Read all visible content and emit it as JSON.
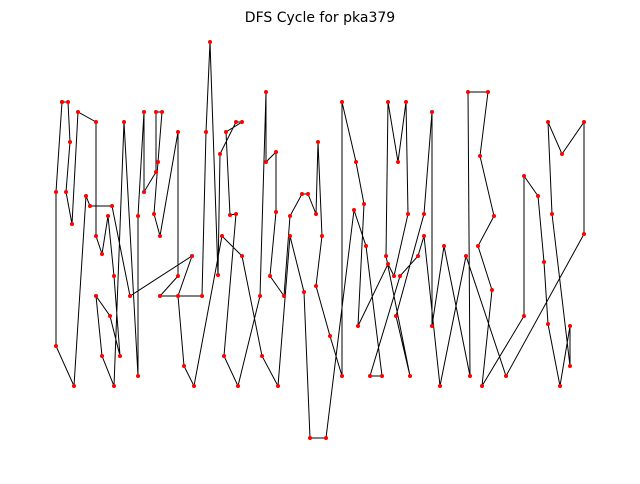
{
  "chart_data": {
    "type": "line",
    "title": "DFS Cycle for pka379",
    "line_color": "#000000",
    "marker_color": "#ff0000",
    "x": [
      62,
      68,
      70,
      66,
      72,
      78,
      96,
      96,
      102,
      108,
      114,
      120,
      110,
      96,
      102,
      114,
      124,
      138,
      138,
      144,
      144,
      156,
      156,
      162,
      158,
      154,
      160,
      178,
      178,
      160,
      202,
      206,
      210,
      218,
      220,
      236,
      242,
      226,
      230,
      236,
      224,
      238,
      260,
      266,
      266,
      276,
      276,
      270,
      284,
      290,
      302,
      308,
      316,
      318,
      322,
      316,
      330,
      342,
      342,
      356,
      364,
      358,
      388,
      394,
      408,
      406,
      398,
      388,
      386,
      410,
      396,
      424,
      432,
      432,
      444,
      470,
      468,
      488,
      480,
      494,
      478,
      492,
      482,
      524,
      524,
      538,
      544,
      548,
      560,
      570,
      570,
      552,
      548,
      562,
      584,
      584,
      506,
      466,
      440,
      424,
      418,
      400,
      370,
      382,
      366,
      354,
      326,
      310,
      304,
      290,
      278,
      262,
      242,
      222,
      194,
      184,
      178,
      192,
      130,
      112,
      90,
      86,
      74,
      56,
      56,
      62
    ],
    "y": [
      378,
      378,
      338,
      288,
      256,
      368,
      358,
      244,
      226,
      264,
      204,
      124,
      164,
      184,
      124,
      94,
      358,
      104,
      264,
      368,
      288,
      308,
      368,
      368,
      318,
      266,
      244,
      348,
      204,
      184,
      184,
      348,
      438,
      205,
      326,
      358,
      358,
      348,
      265,
      266,
      124,
      94,
      184,
      388,
      318,
      328,
      268,
      204,
      184,
      264,
      286,
      286,
      266,
      338,
      244,
      194,
      144,
      104,
      378,
      318,
      276,
      154,
      216,
      204,
      266,
      378,
      318,
      378,
      224,
      104,
      164,
      266,
      368,
      154,
      234,
      104,
      388,
      388,
      324,
      264,
      234,
      190,
      94,
      164,
      304,
      284,
      218,
      156,
      94,
      154,
      114,
      266,
      358,
      326,
      358,
      246,
      104,
      224,
      94,
      244,
      224,
      204,
      104,
      104,
      234,
      270,
      42,
      42,
      188,
      244,
      94,
      124,
      224,
      244,
      94,
      114,
      184,
      224,
      184,
      274,
      274,
      284,
      94,
      134,
      288,
      378
    ]
  }
}
